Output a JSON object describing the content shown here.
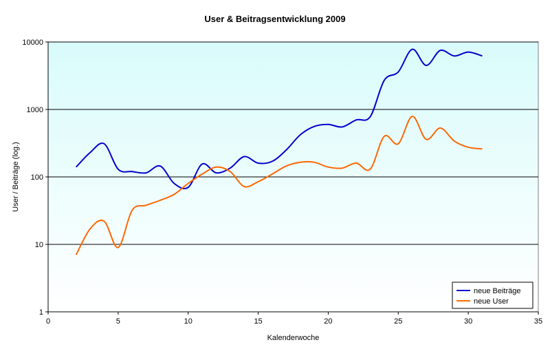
{
  "chart_data": {
    "type": "line",
    "title": "User & Beitragsentwicklung 2009",
    "xlabel": "Kalenderwoche",
    "ylabel": "User / Beiträge (log.)",
    "xlim": [
      0,
      35
    ],
    "x_ticks": [
      0,
      5,
      10,
      15,
      20,
      25,
      30,
      35
    ],
    "x_tick_labels": [
      "0",
      "5",
      "10",
      "15",
      "20",
      "25",
      "30",
      "35"
    ],
    "ylim": [
      1,
      10000
    ],
    "y_scale": "log",
    "y_ticks": [
      1,
      10,
      100,
      1000,
      10000
    ],
    "y_tick_labels": [
      "1",
      "10",
      "100",
      "1000",
      "10000"
    ],
    "grid": "horizontal major gridlines",
    "legend_position": "bottom-right",
    "plot_background": "#d9fbfb",
    "plot_background_light": "#ffffff",
    "series": [
      {
        "name": "neue Beiträge",
        "color": "#0000cc",
        "x": [
          2,
          3,
          4,
          5,
          6,
          7,
          8,
          9,
          10,
          11,
          12,
          13,
          14,
          15,
          16,
          17,
          18,
          19,
          20,
          21,
          22,
          23,
          24,
          25,
          26,
          27,
          28,
          29,
          30,
          31
        ],
        "values": [
          140,
          230,
          310,
          130,
          120,
          115,
          145,
          80,
          70,
          155,
          115,
          135,
          200,
          160,
          170,
          250,
          420,
          560,
          600,
          550,
          700,
          780,
          2700,
          3600,
          7800,
          4500,
          7500,
          6200,
          7100,
          6200
        ]
      },
      {
        "name": "neue User",
        "color": "#ff6600",
        "x": [
          2,
          3,
          4,
          5,
          6,
          7,
          8,
          9,
          10,
          11,
          12,
          13,
          14,
          15,
          16,
          17,
          18,
          19,
          20,
          21,
          22,
          23,
          24,
          25,
          26,
          27,
          28,
          29,
          30,
          31
        ],
        "values": [
          7,
          17,
          22,
          9,
          32,
          38,
          45,
          55,
          80,
          110,
          140,
          120,
          72,
          85,
          110,
          145,
          165,
          165,
          140,
          135,
          160,
          130,
          400,
          310,
          790,
          360,
          530,
          340,
          275,
          260
        ]
      }
    ]
  }
}
